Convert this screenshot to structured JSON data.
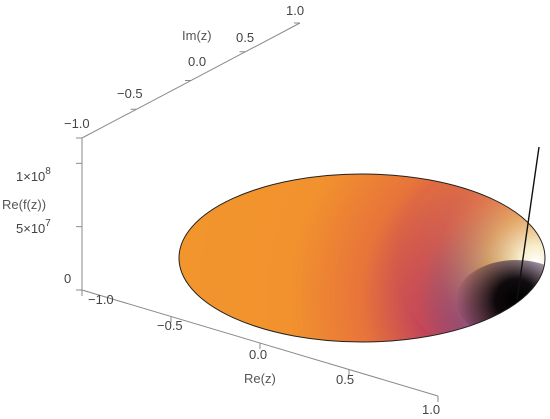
{
  "chart_data": {
    "type": "3d-surface",
    "title": "",
    "xlabel": "Re(z)",
    "ylabel": "Im(z)",
    "zlabel": "Re(f(z))",
    "xlim": [
      -1.0,
      1.0
    ],
    "ylim": [
      -1.0,
      1.0
    ],
    "zlim": [
      0,
      120000000
    ],
    "x_ticks": [
      "−1.0",
      "−0.5",
      "0.0",
      "0.5",
      "1.0"
    ],
    "y_ticks": [
      "−1.0",
      "−0.5",
      "0.0",
      "0.5",
      "1.0"
    ],
    "z_ticks": [
      {
        "value": 0,
        "label": "0"
      },
      {
        "value": 50000000,
        "label": "5×10"
      },
      {
        "value": 100000000,
        "label": "1×10"
      }
    ],
    "z_tick_exponents": {
      "50000000": "7",
      "100000000": "8"
    },
    "domain": "unit disk |z| ≤ 1",
    "spike_near": {
      "re": 1.0,
      "im": 0.0
    },
    "colors": {
      "low": "#000000",
      "mid_low": "#6a2a8a",
      "mid": "#d8563e",
      "base": "#f1922e",
      "high": "#ffffff",
      "edge": "#222222",
      "box": "#8a8a8a"
    }
  }
}
